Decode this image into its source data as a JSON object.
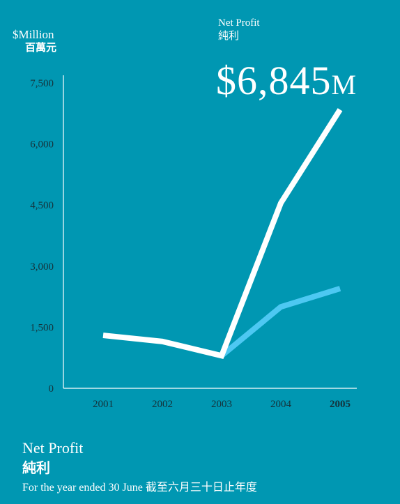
{
  "unit_label": {
    "en": "$Million",
    "zh": "百萬元"
  },
  "kpi": {
    "label_en": "Net Profit",
    "label_zh": "純利",
    "value": "$6,845",
    "unit": "M"
  },
  "footer": {
    "title_en": "Net Profit",
    "title_zh": "純利",
    "subtitle": "For the year ended 30 June  截至六月三十日止年度"
  },
  "colors": {
    "background": "#0097B2",
    "primary_series": "#FFFFFF",
    "secondary_series": "#4DC8F2",
    "tick_text": "#15323A"
  },
  "chart_data": {
    "type": "line",
    "title": "Net Profit",
    "ylabel": "$Million",
    "categories": [
      "2001",
      "2002",
      "2003",
      "2004",
      "2005"
    ],
    "ylim": [
      0,
      7500
    ],
    "yticks": [
      0,
      1500,
      3000,
      4500,
      6000,
      7500
    ],
    "ytick_labels": [
      "0",
      "1,500",
      "3,000",
      "4,500",
      "6,000",
      "7,500"
    ],
    "highlight_category": "2005",
    "grid": false,
    "series": [
      {
        "color": "#FFFFFF",
        "values": [
          1300,
          1150,
          800,
          4550,
          6845
        ]
      },
      {
        "color": "#4DC8F2",
        "values": [
          null,
          null,
          800,
          2000,
          2450
        ]
      }
    ]
  }
}
